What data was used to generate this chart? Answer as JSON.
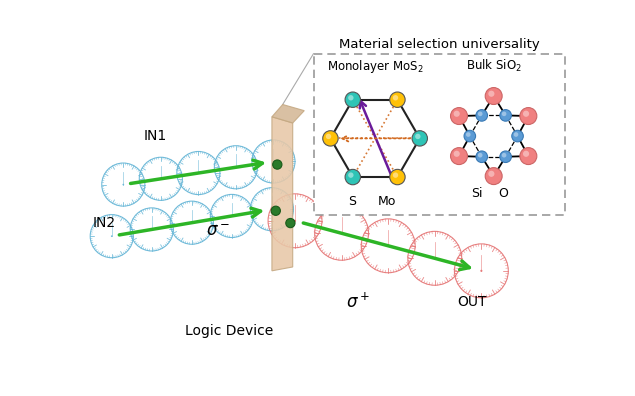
{
  "title": "Material selection universality",
  "mos2_subtitle": "Monolayer MoS$_2$",
  "sio2_subtitle": "Bulk SiO$_2$",
  "s_label": "S",
  "mo_label": "Mo",
  "si_label": "Si",
  "o_label": "O",
  "in1_label": "IN1",
  "in2_label": "IN2",
  "out_label": "OUT",
  "sigma_minus": "$\\sigma^-$",
  "sigma_plus": "$\\sigma^+$",
  "logic_device": "Logic Device",
  "cyan_color": "#2EC4B6",
  "gold_color": "#FFC107",
  "pink_color": "#F08080",
  "blue_color": "#5B9BD5",
  "green_color": "#2DB526",
  "purple_color": "#6A1B9A",
  "orange_dotted": "#D2691E",
  "beam_blue": "#64B5D6",
  "beam_red": "#E57373",
  "panel_color": "#E8C8A8",
  "panel_edge": "#C4A882",
  "bg_color": "#FFFFFF"
}
